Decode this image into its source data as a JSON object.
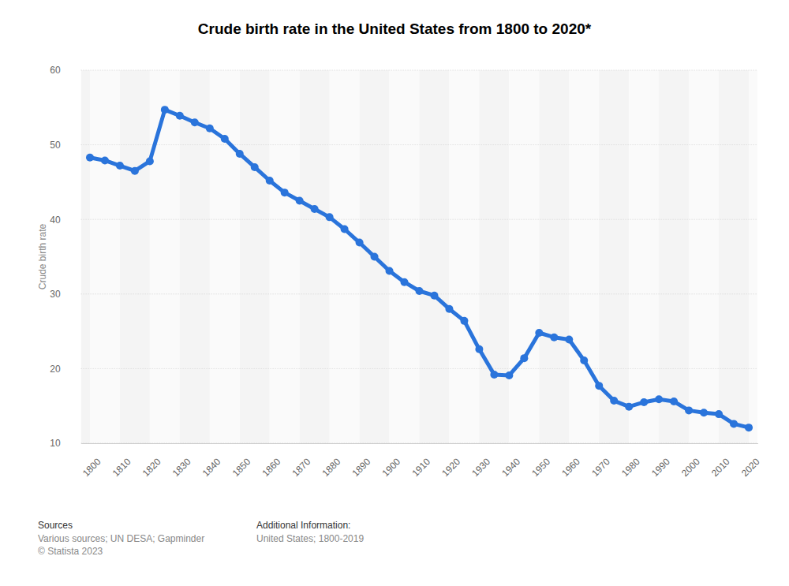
{
  "chart_data": {
    "type": "line",
    "title": "Crude birth rate in the United States from 1800 to 2020*",
    "y_label": "Crude birth rate",
    "x": [
      1800,
      1805,
      1810,
      1815,
      1820,
      1825,
      1830,
      1835,
      1840,
      1845,
      1850,
      1855,
      1860,
      1865,
      1870,
      1875,
      1880,
      1885,
      1890,
      1895,
      1900,
      1905,
      1910,
      1915,
      1920,
      1925,
      1930,
      1935,
      1940,
      1945,
      1950,
      1955,
      1960,
      1965,
      1970,
      1975,
      1980,
      1985,
      1990,
      1995,
      2000,
      2005,
      2010,
      2015,
      2020
    ],
    "values": [
      48.3,
      47.9,
      47.2,
      46.5,
      47.8,
      54.7,
      53.9,
      53.0,
      52.2,
      50.8,
      48.8,
      47.0,
      45.2,
      43.6,
      42.5,
      41.4,
      40.3,
      38.7,
      36.9,
      35.0,
      33.1,
      31.6,
      30.4,
      29.8,
      28.0,
      26.4,
      22.6,
      19.2,
      19.1,
      21.4,
      24.8,
      24.2,
      23.9,
      21.1,
      17.7,
      15.7,
      14.9,
      15.5,
      15.9,
      15.6,
      14.4,
      14.1,
      13.9,
      12.6,
      12.1
    ],
    "color": "#2a74db",
    "marker": "circle",
    "grid": true,
    "xlim": [
      1797,
      2023
    ],
    "xticks": [
      1800,
      1810,
      1820,
      1830,
      1840,
      1850,
      1860,
      1870,
      1880,
      1890,
      1900,
      1910,
      1920,
      1930,
      1940,
      1950,
      1960,
      1970,
      1980,
      1990,
      2000,
      2010,
      2020
    ],
    "ylim": [
      10,
      60
    ],
    "yticks": [
      10,
      20,
      30,
      40,
      50,
      60
    ],
    "footer": {
      "sources_title": "Sources",
      "sources": "Various sources; UN DESA; Gapminder",
      "copyright": "© Statista 2023",
      "info_title": "Additional Information:",
      "info": "United States; 1800-2019"
    }
  }
}
